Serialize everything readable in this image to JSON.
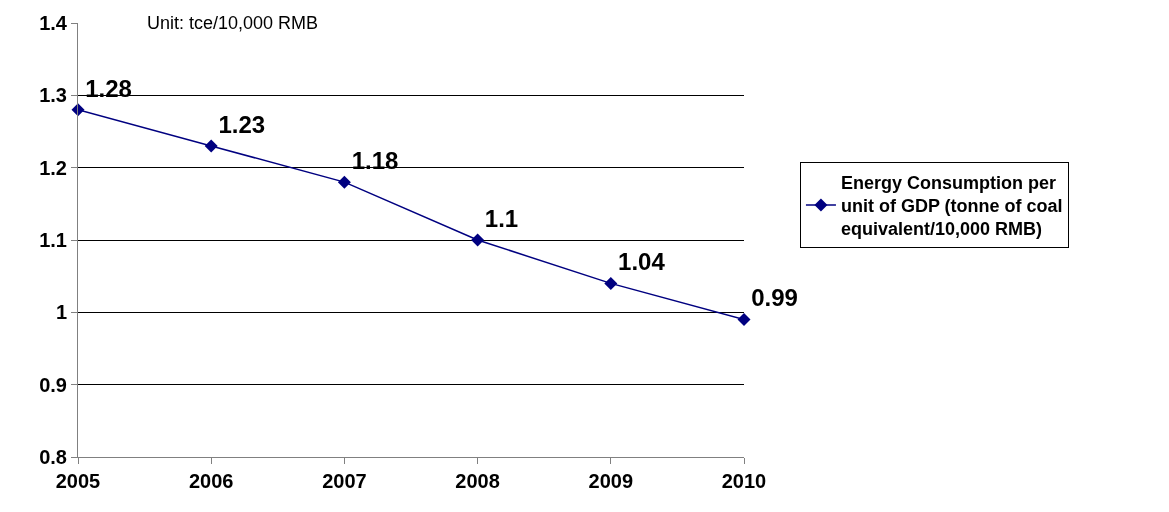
{
  "chart_data": {
    "type": "line",
    "x": [
      2005,
      2006,
      2007,
      2008,
      2009,
      2010
    ],
    "series": [
      {
        "name": "Energy Consumption per unit of GDP (tonne of coal equivalent/10,000 RMB)",
        "color": "#000080",
        "values": [
          1.28,
          1.23,
          1.18,
          1.1,
          1.04,
          0.99
        ]
      }
    ],
    "xlim": [
      2005,
      2010
    ],
    "xticks": [
      2005,
      2006,
      2007,
      2008,
      2009,
      2010
    ],
    "ylim": [
      0.8,
      1.4
    ],
    "yticks": [
      0.8,
      0.9,
      1,
      1.1,
      1.2,
      1.3,
      1.4
    ],
    "grid": "y",
    "legend": "right",
    "marker": "diamond",
    "line_style": "solid",
    "data_labels": true,
    "annotations": [
      "Unit: tce/10,000 RMB"
    ]
  }
}
